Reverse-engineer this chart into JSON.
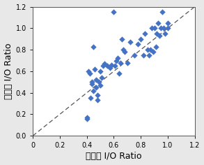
{
  "x_data": [
    0.4,
    0.4,
    0.41,
    0.42,
    0.43,
    0.44,
    0.44,
    0.45,
    0.45,
    0.46,
    0.47,
    0.47,
    0.48,
    0.48,
    0.49,
    0.5,
    0.5,
    0.51,
    0.52,
    0.53,
    0.55,
    0.57,
    0.58,
    0.6,
    0.61,
    0.62,
    0.63,
    0.64,
    0.65,
    0.66,
    0.67,
    0.68,
    0.7,
    0.72,
    0.75,
    0.78,
    0.8,
    0.82,
    0.83,
    0.85,
    0.86,
    0.87,
    0.88,
    0.89,
    0.9,
    0.91,
    0.92,
    0.93,
    0.94,
    0.95,
    0.96,
    0.97,
    0.98,
    1.0,
    1.0
  ],
  "y_data": [
    0.17,
    0.16,
    0.6,
    0.58,
    0.35,
    0.48,
    0.5,
    0.42,
    0.83,
    0.62,
    0.45,
    0.52,
    0.38,
    0.33,
    0.5,
    0.47,
    0.6,
    0.54,
    0.65,
    0.67,
    0.65,
    0.63,
    0.66,
    1.15,
    0.65,
    0.7,
    0.72,
    0.58,
    0.68,
    0.9,
    0.8,
    0.78,
    0.68,
    0.87,
    0.75,
    0.85,
    0.9,
    0.75,
    0.95,
    0.8,
    0.75,
    0.8,
    1.0,
    0.78,
    1.0,
    0.83,
    0.95,
    1.05,
    0.93,
    1.0,
    1.15,
    1.0,
    0.95,
    1.05,
    1.0
  ],
  "marker_color": "#4472C4",
  "marker_size": 18,
  "xlabel": "예측된 I/O Ratio",
  "ylabel": "측정된 I/O Ratio",
  "xlim": [
    0,
    1.2
  ],
  "ylim": [
    0.0,
    1.2
  ],
  "xticks": [
    0,
    0.2,
    0.4,
    0.6,
    0.8,
    1.0,
    1.2
  ],
  "yticks": [
    0.0,
    0.2,
    0.4,
    0.6,
    0.8,
    1.0,
    1.2
  ],
  "diag_color": "#555555",
  "background_color": "#e8e8e8",
  "plot_bg_color": "#ffffff",
  "xlabel_fontsize": 9,
  "ylabel_fontsize": 9,
  "tick_fontsize": 7
}
